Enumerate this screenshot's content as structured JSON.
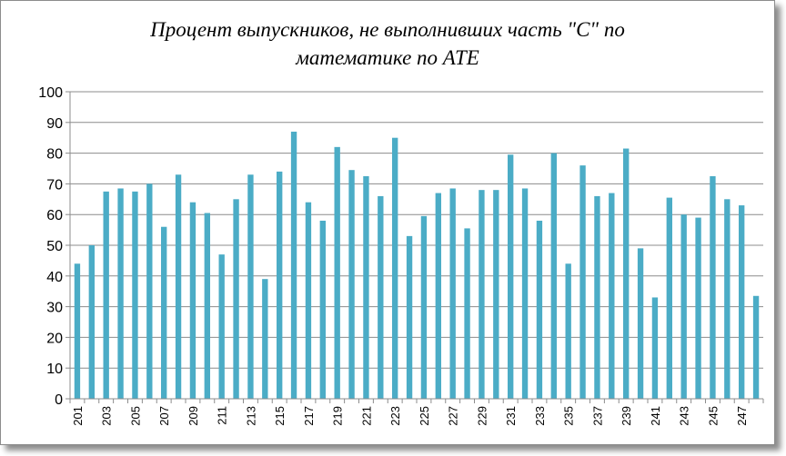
{
  "colors": {
    "bar": "#4bacc6",
    "grid": "#8c8c8c",
    "axis": "#8c8c8c"
  },
  "chart_data": {
    "type": "bar",
    "title_line1": "Процент выпускников, не выполнивших часть \"С\" по",
    "title_line2": "математике по АТЕ",
    "xlabel": "",
    "ylabel": "",
    "ylim": [
      0,
      100
    ],
    "yticks": [
      "0",
      "10",
      "20",
      "30",
      "40",
      "50",
      "60",
      "70",
      "80",
      "90",
      "100"
    ],
    "grid": true,
    "legend": "none",
    "categories": [
      "201",
      "202",
      "203",
      "204",
      "205",
      "206",
      "207",
      "208",
      "209",
      "210",
      "211",
      "212",
      "213",
      "214",
      "215",
      "216",
      "217",
      "218",
      "219",
      "220",
      "221",
      "222",
      "223",
      "224",
      "225",
      "226",
      "227",
      "228",
      "229",
      "230",
      "231",
      "232",
      "233",
      "234",
      "235",
      "236",
      "237",
      "238",
      "239",
      "240",
      "241",
      "242",
      "243",
      "244",
      "245",
      "246",
      "247",
      "248"
    ],
    "tick_labels": [
      "201",
      "",
      "203",
      "",
      "205",
      "",
      "207",
      "",
      "209",
      "",
      "211",
      "",
      "213",
      "",
      "215",
      "",
      "217",
      "",
      "219",
      "",
      "221",
      "",
      "223",
      "",
      "225",
      "",
      "227",
      "",
      "229",
      "",
      "231",
      "",
      "233",
      "",
      "235",
      "",
      "237",
      "",
      "239",
      "",
      "241",
      "",
      "243",
      "",
      "245",
      "",
      "247",
      ""
    ],
    "values": [
      44,
      50,
      67.5,
      68.5,
      67.5,
      70,
      56,
      73,
      64,
      60.5,
      47,
      65,
      73,
      39,
      74,
      87,
      64,
      58,
      82,
      74.5,
      72.5,
      66,
      85,
      53,
      59.5,
      67,
      68.5,
      55.5,
      68,
      68,
      79.5,
      68.5,
      58,
      80,
      44,
      76,
      66,
      67,
      81.5,
      49,
      33,
      65.5,
      60,
      59,
      72.5,
      65,
      63,
      33.5
    ]
  }
}
